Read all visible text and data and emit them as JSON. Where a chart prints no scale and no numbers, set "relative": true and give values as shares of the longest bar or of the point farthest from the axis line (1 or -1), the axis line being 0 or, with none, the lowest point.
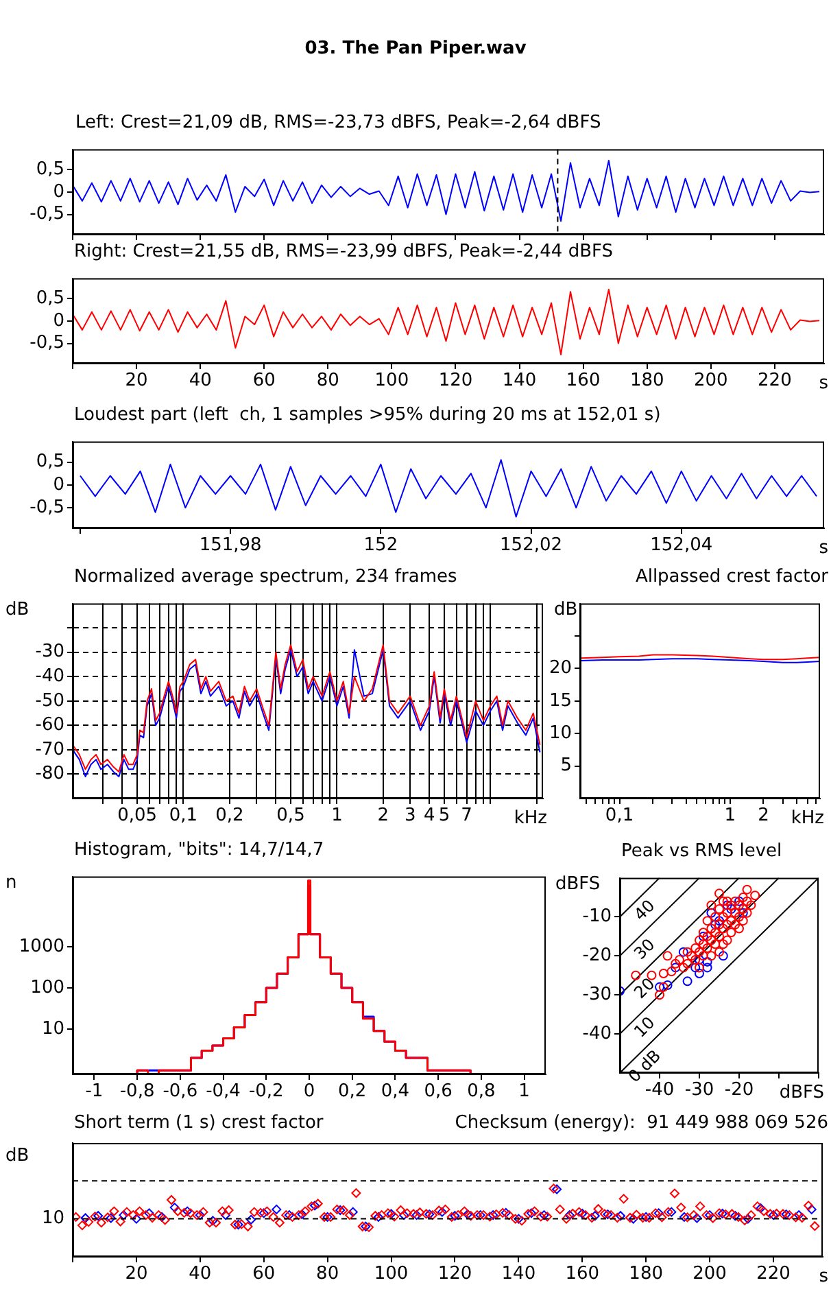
{
  "chart_data": [
    {
      "type": "line",
      "title": "03. The Pan Piper.wav",
      "subtitle": "Left: Crest=21,09 dB, RMS=-23,73 dBFS, Peak=-2,64 dBFS",
      "x": [
        0,
        3,
        6,
        9,
        12,
        15,
        18,
        21,
        24,
        27,
        30,
        33,
        36,
        39,
        42,
        45,
        48,
        51,
        54,
        57,
        60,
        63,
        66,
        69,
        72,
        75,
        78,
        81,
        84,
        87,
        90,
        93,
        96,
        99,
        102,
        105,
        108,
        111,
        114,
        117,
        120,
        123,
        126,
        129,
        132,
        135,
        138,
        141,
        144,
        147,
        150,
        153,
        156,
        159,
        162,
        165,
        168,
        171,
        174,
        177,
        180,
        183,
        186,
        189,
        192,
        195,
        198,
        201,
        204,
        207,
        210,
        213,
        216,
        219,
        222,
        225,
        228,
        231,
        234
      ],
      "series": [
        {
          "color": "#0000ff",
          "values": [
            0.15,
            -0.2,
            0.2,
            -0.22,
            0.25,
            -0.2,
            0.3,
            -0.22,
            0.25,
            -0.25,
            0.22,
            -0.28,
            0.3,
            -0.18,
            0.15,
            -0.2,
            0.38,
            -0.45,
            0.12,
            -0.1,
            0.28,
            -0.3,
            0.25,
            -0.2,
            0.22,
            -0.25,
            0.15,
            -0.12,
            0.12,
            -0.1,
            0.08,
            -0.05,
            0.02,
            -0.3,
            0.35,
            -0.35,
            0.4,
            -0.3,
            0.38,
            -0.5,
            0.4,
            -0.35,
            0.45,
            -0.42,
            0.35,
            -0.4,
            0.4,
            -0.45,
            0.38,
            -0.35,
            0.4,
            -0.65,
            0.65,
            -0.35,
            0.3,
            -0.3,
            0.7,
            -0.55,
            0.35,
            -0.4,
            0.3,
            -0.35,
            0.35,
            -0.45,
            0.3,
            -0.35,
            0.3,
            -0.3,
            0.35,
            -0.3,
            0.3,
            -0.3,
            0.3,
            -0.25,
            0.25,
            -0.2,
            0.02,
            -0.01,
            0.01
          ]
        }
      ],
      "xlim": [
        0,
        235.5
      ],
      "ylim": [
        -0.95,
        0.95
      ],
      "xticks": [
        {
          "value": 0,
          "label": null
        },
        20,
        40,
        60,
        80,
        100,
        120,
        140,
        160,
        180,
        200,
        220
      ],
      "yticks": [
        {
          "value": 0.5,
          "label": "0,5"
        },
        0,
        {
          "value": -0.5,
          "label": "-0,5"
        }
      ],
      "tick_labels": "y",
      "ref_lines": [
        {
          "axis": "x",
          "value": 152,
          "color": "#000000",
          "line_style": "dashed"
        }
      ]
    },
    {
      "type": "line",
      "title": "Right: Crest=21,55 dB, RMS=-23,99 dBFS, Peak=-2,44 dBFS",
      "xlabel": "s",
      "x": [
        0,
        3,
        6,
        9,
        12,
        15,
        18,
        21,
        24,
        27,
        30,
        33,
        36,
        39,
        42,
        45,
        48,
        51,
        54,
        57,
        60,
        63,
        66,
        69,
        72,
        75,
        78,
        81,
        84,
        87,
        90,
        93,
        96,
        99,
        102,
        105,
        108,
        111,
        114,
        117,
        120,
        123,
        126,
        129,
        132,
        135,
        138,
        141,
        144,
        147,
        150,
        153,
        156,
        159,
        162,
        165,
        168,
        171,
        174,
        177,
        180,
        183,
        186,
        189,
        192,
        195,
        198,
        201,
        204,
        207,
        210,
        213,
        216,
        219,
        222,
        225,
        228,
        231,
        234
      ],
      "series": [
        {
          "color": "#ff0000",
          "values": [
            0.15,
            -0.2,
            0.2,
            -0.2,
            0.22,
            -0.2,
            0.25,
            -0.22,
            0.2,
            -0.2,
            0.25,
            -0.25,
            0.2,
            -0.15,
            0.15,
            -0.2,
            0.45,
            -0.6,
            0.1,
            -0.08,
            0.35,
            -0.35,
            0.2,
            -0.15,
            0.15,
            -0.15,
            0.1,
            -0.2,
            0.15,
            -0.1,
            0.1,
            -0.08,
            0.05,
            -0.3,
            0.3,
            -0.3,
            0.35,
            -0.35,
            0.3,
            -0.45,
            0.4,
            -0.3,
            0.35,
            -0.4,
            0.3,
            -0.35,
            0.35,
            -0.35,
            0.3,
            -0.3,
            0.4,
            -0.75,
            0.65,
            -0.4,
            0.3,
            -0.3,
            0.7,
            -0.5,
            0.35,
            -0.35,
            0.3,
            -0.3,
            0.35,
            -0.4,
            0.3,
            -0.35,
            0.3,
            -0.3,
            0.35,
            -0.3,
            0.3,
            -0.3,
            0.3,
            -0.25,
            0.25,
            -0.2,
            0.02,
            -0.01,
            0.01
          ]
        }
      ],
      "xlim": [
        0,
        235.5
      ],
      "ylim": [
        -0.95,
        0.95
      ],
      "xticks": [
        {
          "value": 0,
          "label": null
        },
        20,
        40,
        60,
        80,
        100,
        120,
        140,
        160,
        180,
        200,
        220
      ],
      "yticks": [
        {
          "value": 0.5,
          "label": "0,5"
        },
        0,
        {
          "value": -0.5,
          "label": "-0,5"
        }
      ]
    },
    {
      "type": "line",
      "title": "Loudest part (left  ch, 1 samples >95% during 20 ms at 152,01 s)",
      "xlabel": "s",
      "x": [
        151.96,
        151.962,
        151.964,
        151.966,
        151.968,
        151.97,
        151.972,
        151.974,
        151.976,
        151.978,
        151.98,
        151.982,
        151.984,
        151.986,
        151.988,
        151.99,
        151.992,
        151.994,
        151.996,
        151.998,
        152,
        152.002,
        152.004,
        152.006,
        152.008,
        152.01,
        152.012,
        152.014,
        152.016,
        152.018,
        152.02,
        152.022,
        152.024,
        152.026,
        152.028,
        152.03,
        152.032,
        152.034,
        152.036,
        152.038,
        152.04,
        152.042,
        152.044,
        152.046,
        152.048,
        152.05,
        152.052,
        152.054,
        152.056,
        152.058
      ],
      "series": [
        {
          "color": "#0000ff",
          "values": [
            0.2,
            -0.25,
            0.2,
            -0.2,
            0.3,
            -0.6,
            0.45,
            -0.5,
            0.2,
            -0.2,
            0.2,
            -0.2,
            0.45,
            -0.55,
            0.4,
            -0.45,
            0.2,
            -0.2,
            0.2,
            -0.25,
            0.45,
            -0.6,
            0.35,
            -0.3,
            0.2,
            -0.2,
            0.25,
            -0.5,
            0.55,
            -0.7,
            0.3,
            -0.25,
            0.35,
            -0.5,
            0.4,
            -0.35,
            0.2,
            -0.2,
            0.3,
            -0.4,
            0.3,
            -0.35,
            0.2,
            -0.3,
            0.25,
            -0.3,
            0.2,
            -0.25,
            0.2,
            -0.25
          ]
        }
      ],
      "xlim": [
        151.959,
        152.059
      ],
      "ylim": [
        -0.95,
        0.95
      ],
      "xticks": [
        {
          "value": 151.96,
          "label": null
        },
        {
          "value": 151.98,
          "label": "151,98"
        },
        152,
        {
          "value": 152.02,
          "label": "152,02"
        },
        {
          "value": 152.04,
          "label": "152,04"
        }
      ],
      "yticks": [
        {
          "value": 0.5,
          "label": "0,5"
        },
        0,
        {
          "value": -0.5,
          "label": "-0,5"
        }
      ]
    },
    {
      "type": "line",
      "title": "Normalized average spectrum, 234 frames",
      "ylabel": "dB",
      "xlabel": "kHz",
      "log": "x",
      "grid": true,
      "x": [
        0.019,
        0.021,
        0.023,
        0.025,
        0.027,
        0.029,
        0.032,
        0.035,
        0.038,
        0.041,
        0.044,
        0.047,
        0.05,
        0.052,
        0.055,
        0.058,
        0.062,
        0.066,
        0.07,
        0.075,
        0.08,
        0.085,
        0.09,
        0.095,
        0.1,
        0.11,
        0.12,
        0.13,
        0.14,
        0.15,
        0.17,
        0.19,
        0.21,
        0.23,
        0.25,
        0.27,
        0.3,
        0.33,
        0.36,
        0.38,
        0.4,
        0.43,
        0.46,
        0.5,
        0.55,
        0.6,
        0.65,
        0.7,
        0.8,
        0.9,
        1,
        1.1,
        1.2,
        1.3,
        1.5,
        1.7,
        2,
        2.2,
        2.5,
        3,
        3.5,
        4,
        4.3,
        4.7,
        5,
        5.5,
        6,
        7,
        8,
        9,
        10,
        11,
        12,
        13,
        15,
        17,
        19,
        21
      ],
      "series": [
        {
          "color": "#0000ff",
          "values": [
            -70,
            -74,
            -81,
            -76,
            -74,
            -78,
            -76,
            -79,
            -81,
            -74,
            -78,
            -78,
            -74,
            -64,
            -65,
            -52,
            -47,
            -60,
            -57,
            -50,
            -44,
            -50,
            -57,
            -46,
            -44,
            -37,
            -35,
            -47,
            -42,
            -48,
            -44,
            -52,
            -50,
            -57,
            -46,
            -52,
            -47,
            -55,
            -62,
            -47,
            -32,
            -47,
            -37,
            -29,
            -40,
            -36,
            -47,
            -42,
            -50,
            -40,
            -52,
            -44,
            -57,
            -29,
            -48,
            -47,
            -29,
            -52,
            -57,
            -50,
            -62,
            -54,
            -40,
            -59,
            -47,
            -60,
            -50,
            -67,
            -54,
            -60,
            -54,
            -50,
            -62,
            -52,
            -59,
            -64,
            -57,
            -71
          ]
        },
        {
          "color": "#ff0000",
          "values": [
            -68,
            -72,
            -78,
            -74,
            -72,
            -76,
            -74,
            -77,
            -79,
            -72,
            -76,
            -76,
            -72,
            -62,
            -63,
            -50,
            -45,
            -58,
            -55,
            -48,
            -42,
            -48,
            -55,
            -44,
            -42,
            -35,
            -33,
            -45,
            -40,
            -46,
            -42,
            -50,
            -48,
            -55,
            -44,
            -50,
            -45,
            -53,
            -60,
            -45,
            -30,
            -45,
            -35,
            -27,
            -38,
            -33,
            -45,
            -40,
            -48,
            -38,
            -50,
            -42,
            -55,
            -40,
            -50,
            -45,
            -27,
            -50,
            -55,
            -48,
            -60,
            -52,
            -38,
            -57,
            -45,
            -58,
            -48,
            -65,
            -50,
            -58,
            -52,
            -48,
            -60,
            -50,
            -57,
            -62,
            -55,
            -68
          ]
        }
      ],
      "xlim": [
        0.019,
        22
      ],
      "ylim": [
        -90,
        -10
      ],
      "xticks": [
        {
          "value": 0.03,
          "label": null
        },
        {
          "value": 0.04,
          "label": null
        },
        {
          "value": 0.05,
          "label": "0,05"
        },
        {
          "value": 0.06,
          "label": null
        },
        {
          "value": 0.07,
          "label": null
        },
        {
          "value": 0.08,
          "label": null
        },
        {
          "value": 0.09,
          "label": null
        },
        {
          "value": 0.1,
          "label": "0,1"
        },
        {
          "value": 0.2,
          "label": "0,2"
        },
        {
          "value": 0.3,
          "label": null
        },
        {
          "value": 0.4,
          "label": null
        },
        {
          "value": 0.5,
          "label": "0,5"
        },
        {
          "value": 0.6,
          "label": null
        },
        {
          "value": 0.7,
          "label": null
        },
        {
          "value": 0.8,
          "label": null
        },
        {
          "value": 0.9,
          "label": null
        },
        1,
        2,
        3,
        4,
        5,
        {
          "value": 6,
          "label": null
        },
        7,
        {
          "value": 8,
          "label": null
        },
        {
          "value": 9,
          "label": null
        },
        {
          "value": 10,
          "label": null
        },
        {
          "value": 20,
          "label": null
        }
      ],
      "yticks": [
        {
          "value": -20,
          "label": null
        },
        -30,
        -40,
        -50,
        -60,
        -70,
        -80
      ]
    },
    {
      "type": "line",
      "title": "Allpassed crest factor",
      "ylabel": "dB",
      "xlabel": "kHz",
      "log": "x",
      "x": [
        0.045,
        0.07,
        0.1,
        0.15,
        0.2,
        0.3,
        0.5,
        0.7,
        1,
        1.5,
        2,
        3,
        4,
        5,
        6.5
      ],
      "series": [
        {
          "color": "#0000ff",
          "values": [
            21.2,
            21.3,
            21.3,
            21.3,
            21.4,
            21.5,
            21.5,
            21.4,
            21.3,
            21.2,
            21.1,
            20.9,
            20.9,
            21,
            21.1
          ]
        },
        {
          "color": "#ff0000",
          "values": [
            21.6,
            21.7,
            21.8,
            21.9,
            22.1,
            22.1,
            22,
            21.9,
            21.7,
            21.5,
            21.4,
            21.4,
            21.5,
            21.6,
            21.7
          ]
        }
      ],
      "xlim": [
        0.044,
        6.5
      ],
      "ylim": [
        0,
        30
      ],
      "xticks": [
        {
          "value": 0.05,
          "label": null
        },
        {
          "value": 0.06,
          "label": null
        },
        {
          "value": 0.07,
          "label": null
        },
        {
          "value": 0.08,
          "label": null
        },
        {
          "value": 0.09,
          "label": null
        },
        {
          "value": 0.1,
          "label": "0,1"
        },
        {
          "value": 0.2,
          "label": null
        },
        {
          "value": 0.3,
          "label": null
        },
        {
          "value": 0.4,
          "label": null
        },
        {
          "value": 0.5,
          "label": null
        },
        {
          "value": 0.6,
          "label": null
        },
        {
          "value": 0.7,
          "label": null
        },
        {
          "value": 0.8,
          "label": null
        },
        {
          "value": 0.9,
          "label": null
        },
        1,
        2,
        {
          "value": 3,
          "label": null
        },
        {
          "value": 4,
          "label": null
        },
        {
          "value": 5,
          "label": null
        },
        {
          "value": 6,
          "label": null
        }
      ],
      "yticks": [
        5,
        10,
        15,
        20,
        {
          "value": 25,
          "label": null
        }
      ]
    },
    {
      "type": "histogram",
      "title": "Histogram, \"bits\": 14,7/14,7",
      "ylabel": "n",
      "log": "y",
      "bins": [
        -1.1,
        -1,
        -0.9,
        -0.8,
        -0.75,
        -0.7,
        -0.65,
        -0.6,
        -0.55,
        -0.5,
        -0.45,
        -0.4,
        -0.35,
        -0.3,
        -0.25,
        -0.2,
        -0.15,
        -0.1,
        -0.05,
        -0.005,
        0.005,
        0.05,
        0.1,
        0.15,
        0.2,
        0.25,
        0.3,
        0.35,
        0.4,
        0.45,
        0.5,
        0.55,
        0.6,
        0.65,
        0.7,
        0.75,
        0.8,
        0.9,
        1,
        1.1
      ],
      "series": [
        {
          "color": "#0000ff",
          "values": [
            null,
            null,
            null,
            1,
            1,
            1,
            1,
            1,
            2,
            3,
            4,
            6,
            11,
            22,
            45,
            100,
            220,
            550,
            2000,
            30000,
            2000,
            550,
            220,
            100,
            45,
            20,
            9,
            5,
            3,
            2,
            2,
            1,
            1,
            1,
            1,
            null,
            null,
            null,
            null
          ]
        },
        {
          "color": "#ff0000",
          "values": [
            null,
            null,
            null,
            1,
            null,
            1,
            1,
            1,
            2,
            3,
            4,
            6,
            11,
            22,
            45,
            100,
            220,
            550,
            2000,
            40000,
            2000,
            550,
            220,
            100,
            45,
            18,
            9,
            5,
            3,
            2,
            2,
            1,
            1,
            1,
            1,
            null,
            null,
            null,
            null
          ]
        }
      ],
      "xlim": [
        -1.1,
        1.1
      ],
      "ylim": [
        0.8,
        50000
      ],
      "xticks": [
        -1,
        {
          "value": -0.8,
          "label": "-0,8"
        },
        {
          "value": -0.6,
          "label": "-0,6"
        },
        {
          "value": -0.4,
          "label": "-0,4"
        },
        {
          "value": -0.2,
          "label": "-0,2"
        },
        0,
        {
          "value": 0.2,
          "label": "0,2"
        },
        {
          "value": 0.4,
          "label": "0,4"
        },
        {
          "value": 0.6,
          "label": "0,6"
        },
        {
          "value": 0.8,
          "label": "0,8"
        },
        1
      ],
      "yticks": [
        10,
        100,
        1000
      ]
    },
    {
      "type": "scatter",
      "title": "Peak vs RMS level",
      "ylabel": "dBFS",
      "xlabel": "dBFS",
      "marker": "circle",
      "series": [
        {
          "type": "line",
          "name": "0 dB",
          "marker": "none",
          "color": "#000000",
          "x": [
            -50,
            0
          ],
          "values": [
            -50,
            0
          ]
        },
        {
          "type": "line",
          "name": "10",
          "marker": "none",
          "color": "#000000",
          "x": [
            -50,
            -10
          ],
          "values": [
            -40,
            0
          ]
        },
        {
          "type": "line",
          "name": "20",
          "marker": "none",
          "color": "#000000",
          "x": [
            -50,
            -20
          ],
          "values": [
            -30,
            0
          ]
        },
        {
          "type": "line",
          "name": "30",
          "marker": "none",
          "color": "#000000",
          "x": [
            -50,
            -30
          ],
          "values": [
            -20,
            0
          ]
        },
        {
          "type": "line",
          "name": "40",
          "marker": "none",
          "color": "#000000",
          "x": [
            -50,
            -40
          ],
          "values": [
            -10,
            0
          ]
        },
        {
          "color": "#0000ff",
          "x": [
            -50,
            -40,
            -38,
            -36,
            -34,
            -33,
            -31,
            -30,
            -30,
            -29,
            -28,
            -28,
            -27,
            -26,
            -25,
            -24,
            -23,
            -22,
            -21,
            -20,
            -19
          ],
          "values": [
            -29,
            -28,
            -27.5,
            -23,
            -19,
            -26.5,
            -23,
            -24.5,
            -21,
            -15,
            -21.5,
            -23,
            -9,
            -12,
            -11,
            -20,
            -7,
            -8,
            null,
            -6,
            -9
          ]
        },
        {
          "color": "#ff0000",
          "x": [
            -46,
            -42,
            -40,
            -39,
            -39,
            -38,
            -37,
            -36,
            -35,
            -34,
            -33,
            -33,
            -32,
            -31,
            -31,
            -30,
            -30,
            -30,
            -29,
            -29,
            -29,
            -28,
            -28,
            -28,
            -27,
            -27,
            -27,
            -27,
            -26,
            -26,
            -26,
            -25,
            -25,
            -25,
            -25,
            -25,
            -24,
            -24,
            -24,
            -24,
            -23,
            -23,
            -23,
            -23,
            -22,
            -22,
            -22,
            -21,
            -21,
            -21,
            -20,
            -20,
            -20,
            -19,
            -19,
            -19,
            -18,
            -18,
            -18,
            -17,
            -16
          ],
          "values": [
            -25,
            -25,
            -30,
            -28,
            -24.5,
            -20,
            -24,
            -22,
            -21,
            -23,
            -22,
            -19,
            -20,
            -21,
            -18,
            -23,
            -19,
            -16,
            -20,
            -17,
            -14,
            -18,
            -15,
            -11,
            -20,
            -16,
            -13,
            -7,
            -17,
            -14,
            -10,
            -19,
            -15,
            -12,
            -8,
            -4,
            -17,
            -13,
            -10,
            -6,
            -16,
            -12,
            -9,
            -6,
            -14,
            -11,
            -7,
            -12,
            -9,
            -6,
            -13,
            -10,
            -7,
            -11,
            -8,
            -5,
            -9,
            -6,
            -3,
            -7,
            -4.5
          ]
        }
      ],
      "xlim": [
        -50,
        0
      ],
      "ylim": [
        -50,
        0
      ],
      "xticks": [
        -40,
        -30,
        -20,
        {
          "value": -10,
          "label": null
        },
        {
          "value": 0,
          "label": null
        }
      ],
      "yticks": [
        -40,
        -30,
        -20,
        -10
      ]
    },
    {
      "type": "scatter",
      "title": "Short term (1 s) crest factor",
      "ylabel": "dB",
      "xlabel": "s",
      "marker": "diamond",
      "relative": true,
      "series": [
        {
          "color": "#0000ff",
          "x": [
            4,
            8,
            12,
            16,
            20,
            24,
            28,
            32,
            36,
            40,
            44,
            48,
            52,
            56,
            60,
            64,
            68,
            72,
            76,
            80,
            84,
            88,
            92,
            96,
            100,
            104,
            108,
            112,
            116,
            120,
            124,
            128,
            132,
            136,
            140,
            144,
            148,
            152,
            156,
            160,
            164,
            168,
            172,
            176,
            180,
            184,
            188,
            192,
            196,
            200,
            204,
            208,
            212,
            216,
            220,
            224,
            228,
            232
          ],
          "values": [
            0.567,
            0.6,
            0.567,
            0.611,
            0.556,
            0.639,
            0.583,
            0.722,
            0.667,
            0.611,
            0.528,
            0.611,
            0.472,
            0.544,
            0.639,
            0.694,
            0.611,
            0.622,
            0.75,
            0.583,
            0.683,
            0.656,
            0.444,
            0.583,
            0.628,
            0.611,
            0.611,
            0.622,
            0.656,
            0.6,
            0.622,
            0.611,
            0.611,
            0.644,
            0.556,
            0.639,
            0.611,
            0.989,
            0.611,
            0.633,
            0.6,
            0.622,
            0.6,
            0.556,
            0.583,
            0.639,
            0.656,
            0.583,
            0.567,
            0.611,
            0.633,
            0.6,
            0.556,
            0.711,
            0.611,
            0.622,
            0.611,
            0.694
          ]
        },
        {
          "color": "#ff0000",
          "x": [
            1,
            3,
            5,
            7,
            9,
            11,
            13,
            15,
            17,
            19,
            21,
            23,
            25,
            27,
            29,
            31,
            33,
            35,
            37,
            39,
            41,
            43,
            45,
            47,
            49,
            51,
            53,
            55,
            57,
            59,
            61,
            63,
            65,
            67,
            69,
            71,
            73,
            75,
            77,
            79,
            81,
            83,
            85,
            87,
            89,
            91,
            93,
            95,
            97,
            99,
            101,
            103,
            105,
            107,
            109,
            111,
            113,
            115,
            117,
            119,
            121,
            123,
            125,
            127,
            129,
            131,
            133,
            135,
            137,
            139,
            141,
            143,
            145,
            147,
            149,
            151,
            153,
            155,
            157,
            159,
            161,
            163,
            165,
            167,
            169,
            171,
            173,
            175,
            177,
            179,
            181,
            183,
            185,
            187,
            189,
            191,
            193,
            195,
            197,
            199,
            201,
            203,
            205,
            207,
            209,
            211,
            213,
            215,
            217,
            219,
            221,
            223,
            225,
            227,
            229,
            231,
            233
          ],
          "values": [
            0.583,
            0.461,
            0.511,
            0.589,
            0.5,
            0.578,
            0.667,
            0.517,
            0.656,
            0.611,
            0.667,
            0.611,
            0.572,
            0.611,
            0.539,
            0.833,
            0.667,
            0.644,
            0.639,
            0.611,
            0.656,
            0.5,
            0.5,
            0.667,
            0.683,
            0.472,
            0.478,
            0.444,
            0.656,
            0.644,
            0.667,
            0.583,
            0.5,
            0.611,
            0.583,
            0.611,
            0.667,
            0.739,
            0.778,
            0.583,
            0.583,
            0.694,
            0.683,
            0.611,
            0.933,
            0.444,
            0.433,
            0.6,
            0.611,
            0.639,
            0.589,
            0.683,
            0.639,
            0.628,
            0.65,
            0.628,
            0.611,
            0.678,
            0.694,
            0.583,
            0.611,
            0.667,
            0.6,
            0.611,
            0.611,
            0.589,
            0.622,
            0.644,
            0.611,
            0.556,
            0.528,
            0.628,
            0.667,
            0.589,
            0.589,
            1,
            0.694,
            0.556,
            0.633,
            0.656,
            0.611,
            0.572,
            0.7,
            0.628,
            0.611,
            0.572,
            0.85,
            0.572,
            0.617,
            0.572,
            0.572,
            0.639,
            0.578,
            0.656,
            0.928,
            0.722,
            0.578,
            0.611,
            0.739,
            0.611,
            0.567,
            0.639,
            0.622,
            0.628,
            0.583,
            0.533,
            0.611,
            0.739,
            0.667,
            0.628,
            0.633,
            0.628,
            0.611,
            0.578,
            0.572,
            0.75,
            0.45
          ]
        }
      ],
      "xlim": [
        0,
        235.5
      ],
      "xticks": [
        {
          "value": 0,
          "label": null
        },
        20,
        40,
        60,
        80,
        100,
        120,
        140,
        160,
        180,
        200,
        220
      ],
      "ref_lines": [
        {
          "axis": "y",
          "value": 0.556,
          "color": "#000000",
          "line_style": "dashed"
        },
        {
          "axis": "y",
          "value": 1.111,
          "color": "#000000",
          "line_style": "dashed"
        }
      ],
      "annotations": [
        "Checksum (energy):  91 449 988 069 526",
        {
          "text": "10",
          "x": 0,
          "y": 0.556
        }
      ]
    }
  ]
}
